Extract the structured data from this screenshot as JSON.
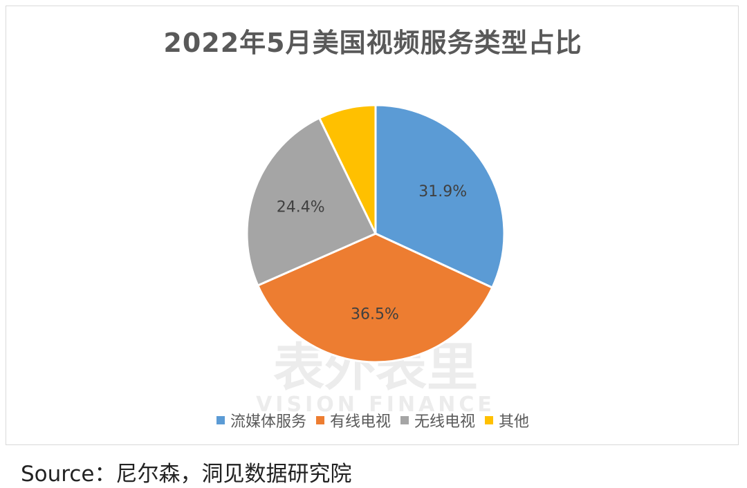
{
  "title": "2022年5月美国视频服务类型占比",
  "source": "Source：尼尔森，洞见数据研究院",
  "watermark": {
    "cn": "表外表里",
    "en": "VISION FINANCE"
  },
  "chart_data": {
    "type": "pie",
    "title": "2022年5月美国视频服务类型占比",
    "start_angle_deg": 0,
    "direction": "clockwise",
    "legend_position": "bottom",
    "slices": [
      {
        "name": "流媒体服务",
        "value": 31.9,
        "label": "31.9%",
        "color": "#5b9bd5"
      },
      {
        "name": "有线电视",
        "value": 36.5,
        "label": "36.5%",
        "color": "#ed7d31"
      },
      {
        "name": "无线电视",
        "value": 24.4,
        "label": "24.4%",
        "color": "#a5a5a5"
      },
      {
        "name": "其他",
        "value": 7.2,
        "label": "",
        "color": "#ffc000"
      }
    ]
  }
}
